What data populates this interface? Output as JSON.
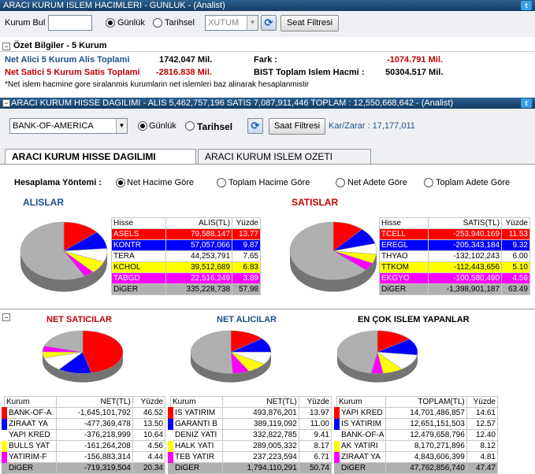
{
  "top": {
    "title": "ARACI KURUM ISLEM HACIMLERI - GUNLUK - (Analist)",
    "search_label": "Kurum Bul",
    "search_value": "",
    "radio_daily": "Günlük",
    "radio_date": "Tarihsel",
    "select_value": "XUTUM",
    "session_filter": "Seat Filtresi"
  },
  "summary": {
    "title": "Özet Bilgiler - 5 Kurum",
    "buy_label": "Net Alici 5 Kurum Alis Toplami",
    "buy_value": "1742.047 Mil.",
    "sell_label": "Net Satici 5 Kurum Satis Toplami",
    "sell_value": "-2816.838 Mil.",
    "diff_label": "Fark :",
    "diff_value": "-1074.791 Mil.",
    "total_label": "BIST Toplam Islem Hacmi :",
    "total_value": "50304.517 Mil.",
    "note": "*Net islem hacmine gore siralanmis kurumlarin net islemleri baz alinarak hesaplanmistir"
  },
  "dist": {
    "title": "ARACI KURUM HISSE DAGILIMI - ALIS 5,462,757,196  SATIS 7,087,911,446  TOPLAM : 12,550,668,642 - (Analist)",
    "broker": "BANK-OF-AMERICA YATIRIM",
    "radio_daily": "Günlük",
    "radio_date": "Tarihsel",
    "session_filter": "Saat Filtresi",
    "profit": "Kar/Zarar : 17,177,011",
    "tabs": [
      "ARACI KURUM HISSE DAGILIMI",
      "ARACI KURUM ISLEM OZETI"
    ],
    "calc_label": "Hesaplama Yöntemi :",
    "calc_options": [
      "Net Hacime Göre",
      "Toplam Hacime Göre",
      "Net Adete Göre",
      "Toplam Adete Göre"
    ],
    "buys_title": "ALISLAR",
    "sells_title": "SATISLAR",
    "buy_headers": [
      "Hisse",
      "ALIS(TL)",
      "Yüzde"
    ],
    "sell_headers": [
      "Hisse",
      "SATIS(TL)",
      "Yüzde"
    ],
    "buys": [
      {
        "name": "ASELS",
        "value": "79,588,147",
        "pct": "13.77",
        "bg": "#ff0000",
        "fg": "#ffffff"
      },
      {
        "name": "KONTR",
        "value": "57,057,066",
        "pct": "9.87",
        "bg": "#0000ff",
        "fg": "#ffffff"
      },
      {
        "name": "TERA",
        "value": "44,253,791",
        "pct": "7.65",
        "bg": "#ffffff",
        "fg": "#000000"
      },
      {
        "name": "KCHOL",
        "value": "39,512,689",
        "pct": "6.83",
        "bg": "#ffff00",
        "fg": "#000000"
      },
      {
        "name": "TABGD",
        "value": "22,516,249",
        "pct": "3.89",
        "bg": "#ff00ff",
        "fg": "#ffffff"
      },
      {
        "name": "DiGER",
        "value": "335,228,738",
        "pct": "57.98",
        "bg": "#b0b0b0",
        "fg": "#000000"
      }
    ],
    "sells": [
      {
        "name": "TCELL",
        "value": "-253,940,169",
        "pct": "11.53",
        "bg": "#ff0000",
        "fg": "#ffffff"
      },
      {
        "name": "EREGL",
        "value": "-205,343,184",
        "pct": "9.32",
        "bg": "#0000ff",
        "fg": "#ffffff"
      },
      {
        "name": "THYAO",
        "value": "-132,102,243",
        "pct": "6.00",
        "bg": "#ffffff",
        "fg": "#000000"
      },
      {
        "name": "TTKOM",
        "value": "-112,443,656",
        "pct": "5.10",
        "bg": "#ffff00",
        "fg": "#000000"
      },
      {
        "name": "EKGYO",
        "value": "-100,580,490",
        "pct": "4.56",
        "bg": "#ff00ff",
        "fg": "#ffffff"
      },
      {
        "name": "DiGER",
        "value": "-1,398,901,187",
        "pct": "63.49",
        "bg": "#b0b0b0",
        "fg": "#000000"
      }
    ]
  },
  "bottom": {
    "sellers_title": "NET SATICILAR",
    "buyers_title": "NET ALICILAR",
    "most_title": "EN ÇOK ISLEM YAPANLAR",
    "net_headers": [
      "Kurum",
      "NET(TL)",
      "Yüzde"
    ],
    "total_headers": [
      "Kurum",
      "TOPLAM(TL)",
      "Yüzde"
    ],
    "sellers": [
      {
        "name": "BANK-OF-A",
        "value": "-1,645,101,792",
        "pct": "46.52",
        "c": "#ff0000"
      },
      {
        "name": "ZIRAAT YA",
        "value": "-477,369,478",
        "pct": "13.50",
        "c": "#0000ff"
      },
      {
        "name": "YAPI KRED",
        "value": "-376,218,999",
        "pct": "10.64",
        "c": "#ffffff"
      },
      {
        "name": "BULLS YAT",
        "value": "-161,264,208",
        "pct": "4.56",
        "c": "#ffff00"
      },
      {
        "name": "YATIRIM-F",
        "value": "-156,883,314",
        "pct": "4.44",
        "c": "#ff00ff"
      },
      {
        "name": "DiGER",
        "value": "-719,319,504",
        "pct": "20.34",
        "c": "#b0b0b0"
      }
    ],
    "buyers": [
      {
        "name": "IS YATIRIM",
        "value": "493,876,201",
        "pct": "13.97",
        "c": "#ff0000"
      },
      {
        "name": "GARANTI B",
        "value": "389,119,092",
        "pct": "11.00",
        "c": "#0000ff"
      },
      {
        "name": "DENIZ YATI",
        "value": "332,822,785",
        "pct": "9.41",
        "c": "#ffffff"
      },
      {
        "name": "HALK YATI",
        "value": "289,005,332",
        "pct": "8.17",
        "c": "#ffff00"
      },
      {
        "name": "TEB YATIR",
        "value": "237,223,594",
        "pct": "6.71",
        "c": "#ff00ff"
      },
      {
        "name": "DiGER",
        "value": "1,794,110,291",
        "pct": "50.74",
        "c": "#b0b0b0"
      }
    ],
    "most": [
      {
        "name": "YAPI KRED",
        "value": "14,701,486,857",
        "pct": "14.61",
        "c": "#ff0000"
      },
      {
        "name": "IS YATIRIM",
        "value": "12,651,151,503",
        "pct": "12.57",
        "c": "#0000ff"
      },
      {
        "name": "BANK-OF-A",
        "value": "12,479,658,796",
        "pct": "12.40",
        "c": "#ffffff"
      },
      {
        "name": "AK YATIRI",
        "value": "8,170,271,896",
        "pct": "8.12",
        "c": "#ffff00"
      },
      {
        "name": "ZIRAAT YA",
        "value": "4,843,606,399",
        "pct": "4.81",
        "c": "#ff00ff"
      },
      {
        "name": "DiGER",
        "value": "47,762,856,740",
        "pct": "47.47",
        "c": "#b0b0b0"
      }
    ]
  }
}
